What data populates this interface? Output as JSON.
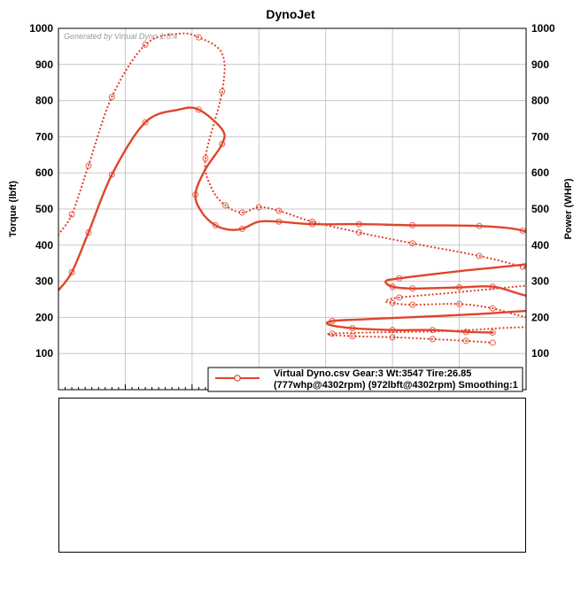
{
  "chart_data": {
    "type": "line",
    "title": "DynoJet",
    "watermark": "Generated by Virtual Dyno 1.8.4",
    "ylabel_left": "Torque (lbft)",
    "ylabel_right": "Power (WHP)",
    "ylim": [
      0,
      1000
    ],
    "yticks": [
      100,
      200,
      300,
      400,
      500,
      600,
      700,
      800,
      900,
      1000
    ],
    "xlim": [
      0,
      7
    ],
    "grid": true,
    "legend": {
      "placement": "bottom-right",
      "line1": "Virtual Dyno.csv Gear:3 Wt:3547 Tire:26.85",
      "line2": "(777whp@4302rpm) (972lbft@4302rpm) Smoothing:1"
    },
    "colors": {
      "series": "#e0452b",
      "grid": "#c8c8c8",
      "frame": "#000000"
    },
    "series": [
      {
        "style": "solid",
        "role": "power",
        "points": [
          [
            0,
            275
          ],
          [
            0.2,
            325
          ],
          [
            0.45,
            435
          ],
          [
            0.8,
            595
          ],
          [
            1.3,
            740
          ],
          [
            1.8,
            775
          ],
          [
            2.1,
            775
          ],
          [
            2.45,
            720
          ],
          [
            2.45,
            680
          ],
          [
            2.2,
            610
          ],
          [
            2.05,
            540
          ],
          [
            2.15,
            490
          ],
          [
            2.35,
            455
          ],
          [
            2.55,
            443
          ],
          [
            2.75,
            445
          ],
          [
            3.0,
            465
          ],
          [
            3.3,
            465
          ],
          [
            3.8,
            458
          ],
          [
            4.5,
            458
          ],
          [
            5.3,
            455
          ],
          [
            6.3,
            453
          ],
          [
            6.95,
            440
          ],
          [
            7.3,
            405
          ],
          [
            7.5,
            375
          ],
          [
            7.1,
            350
          ],
          [
            6.0,
            328
          ],
          [
            5.1,
            308
          ],
          [
            4.9,
            300
          ],
          [
            5.0,
            285
          ],
          [
            5.3,
            280
          ],
          [
            6.0,
            283
          ],
          [
            6.5,
            285
          ],
          [
            6.9,
            265
          ],
          [
            7.5,
            230
          ],
          [
            6.6,
            213
          ],
          [
            5.8,
            205
          ],
          [
            4.6,
            195
          ],
          [
            4.1,
            190
          ],
          [
            4.05,
            180
          ],
          [
            4.4,
            170
          ],
          [
            5.0,
            165
          ],
          [
            5.6,
            165
          ],
          [
            6.1,
            160
          ],
          [
            6.5,
            158
          ]
        ],
        "markers": [
          [
            0.2,
            325
          ],
          [
            0.45,
            435
          ],
          [
            0.8,
            595
          ],
          [
            1.3,
            740
          ],
          [
            2.1,
            775
          ],
          [
            2.45,
            680
          ],
          [
            2.05,
            540
          ],
          [
            2.35,
            455
          ],
          [
            2.75,
            445
          ],
          [
            3.3,
            465
          ],
          [
            3.8,
            458
          ],
          [
            4.5,
            458
          ],
          [
            5.3,
            455
          ],
          [
            6.3,
            453
          ],
          [
            6.95,
            440
          ],
          [
            5.1,
            308
          ],
          [
            5.0,
            285
          ],
          [
            5.3,
            280
          ],
          [
            6.0,
            283
          ],
          [
            6.5,
            285
          ],
          [
            4.1,
            190
          ],
          [
            4.4,
            170
          ],
          [
            5.0,
            165
          ],
          [
            5.6,
            165
          ],
          [
            6.1,
            160
          ],
          [
            6.5,
            158
          ]
        ]
      },
      {
        "style": "dotted",
        "role": "torque",
        "points": [
          [
            0,
            430
          ],
          [
            0.2,
            485
          ],
          [
            0.45,
            620
          ],
          [
            0.8,
            810
          ],
          [
            1.3,
            955
          ],
          [
            1.8,
            985
          ],
          [
            2.1,
            975
          ],
          [
            2.45,
            930
          ],
          [
            2.45,
            825
          ],
          [
            2.2,
            640
          ],
          [
            2.3,
            555
          ],
          [
            2.5,
            510
          ],
          [
            2.75,
            490
          ],
          [
            3.0,
            505
          ],
          [
            3.3,
            495
          ],
          [
            3.8,
            465
          ],
          [
            4.5,
            435
          ],
          [
            5.3,
            405
          ],
          [
            6.3,
            370
          ],
          [
            6.95,
            340
          ],
          [
            7.3,
            320
          ],
          [
            7.6,
            302
          ],
          [
            7.1,
            290
          ],
          [
            6.0,
            270
          ],
          [
            5.1,
            255
          ],
          [
            4.9,
            245
          ],
          [
            5.0,
            240
          ],
          [
            5.3,
            235
          ],
          [
            6.0,
            237
          ],
          [
            6.5,
            225
          ],
          [
            6.9,
            205
          ],
          [
            7.5,
            180
          ],
          [
            6.6,
            170
          ],
          [
            5.8,
            162
          ],
          [
            4.6,
            158
          ],
          [
            4.1,
            155
          ],
          [
            4.05,
            152
          ],
          [
            4.4,
            148
          ],
          [
            5.0,
            145
          ],
          [
            5.6,
            140
          ],
          [
            6.1,
            135
          ],
          [
            6.5,
            130
          ]
        ],
        "markers": [
          [
            0.2,
            485
          ],
          [
            0.45,
            620
          ],
          [
            0.8,
            810
          ],
          [
            1.3,
            955
          ],
          [
            2.1,
            975
          ],
          [
            2.45,
            825
          ],
          [
            2.2,
            640
          ],
          [
            2.5,
            510
          ],
          [
            2.75,
            490
          ],
          [
            3.0,
            505
          ],
          [
            3.3,
            495
          ],
          [
            3.8,
            465
          ],
          [
            4.5,
            435
          ],
          [
            5.3,
            405
          ],
          [
            6.3,
            370
          ],
          [
            6.95,
            340
          ],
          [
            5.1,
            255
          ],
          [
            5.0,
            240
          ],
          [
            5.3,
            235
          ],
          [
            6.0,
            237
          ],
          [
            6.5,
            225
          ],
          [
            4.1,
            155
          ],
          [
            4.4,
            148
          ],
          [
            5.0,
            145
          ],
          [
            5.6,
            140
          ],
          [
            6.1,
            135
          ],
          [
            6.5,
            130
          ]
        ]
      }
    ]
  }
}
